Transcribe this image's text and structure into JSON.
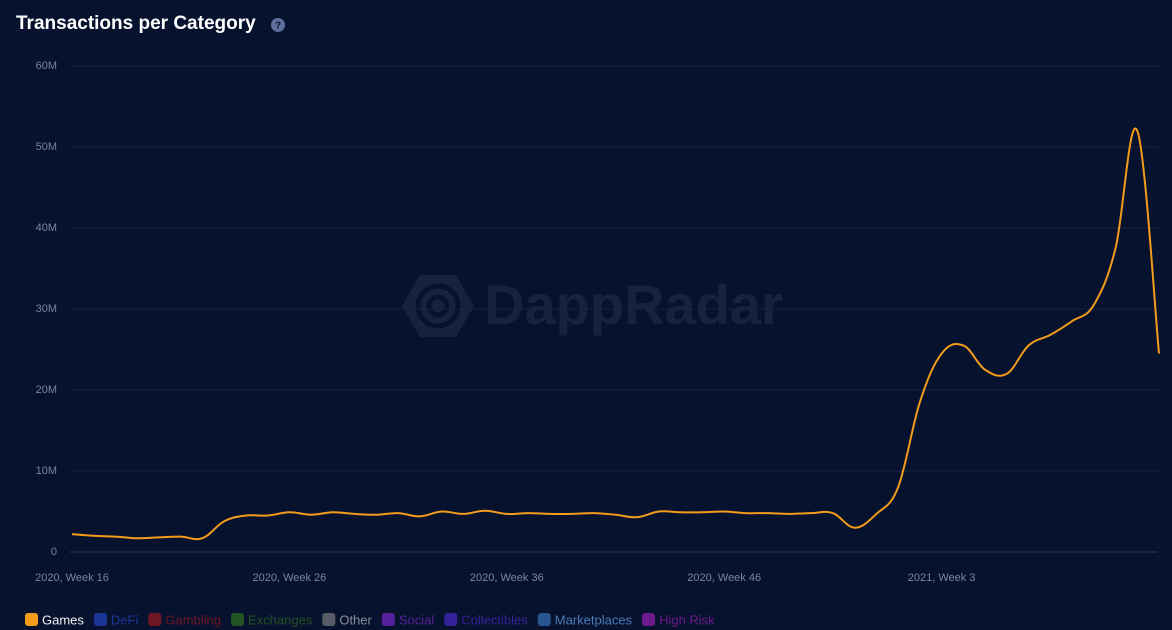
{
  "chart_data": {
    "type": "line",
    "title": "Transactions per Category",
    "watermark": "DappRadar",
    "categories": [
      "2020, Week 16",
      null,
      null,
      null,
      null,
      null,
      null,
      null,
      null,
      null,
      "2020, Week 26",
      null,
      null,
      null,
      null,
      null,
      null,
      null,
      null,
      null,
      "2020, Week 36",
      null,
      null,
      null,
      null,
      null,
      null,
      null,
      null,
      null,
      "2020, Week 46",
      null,
      null,
      null,
      null,
      null,
      null,
      null,
      null,
      null,
      "2021, Week 3",
      null,
      null,
      null,
      null,
      null,
      null,
      null,
      null,
      null,
      null
    ],
    "series": [
      {
        "name": "Games",
        "color": "#f39c1b",
        "visible": true,
        "values": [
          2200000,
          2000000,
          1900000,
          1700000,
          1800000,
          1900000,
          1700000,
          3800000,
          4500000,
          4500000,
          4900000,
          4600000,
          4900000,
          4700000,
          4600000,
          4800000,
          4400000,
          5000000,
          4700000,
          5100000,
          4700000,
          4800000,
          4700000,
          4700000,
          4800000,
          4600000,
          4300000,
          5000000,
          4900000,
          4900000,
          5000000,
          4800000,
          4800000,
          4700000,
          4800000,
          4800000,
          3000000,
          4700000,
          8000000,
          18500000,
          24500000,
          25500000,
          22500000,
          22000000,
          25500000,
          26800000,
          28500000,
          30500000,
          37500000,
          52000000,
          24500000
        ]
      },
      {
        "name": "DeFi",
        "color": "#1c3595",
        "visible": false
      },
      {
        "name": "Gambling",
        "color": "#6e1622",
        "visible": false
      },
      {
        "name": "Exchanges",
        "color": "#235223",
        "visible": false
      },
      {
        "name": "Other",
        "color": "#575c66",
        "visible": false
      },
      {
        "name": "Social",
        "color": "#55209a",
        "visible": false
      },
      {
        "name": "Collectibles",
        "color": "#35229a",
        "visible": false
      },
      {
        "name": "Marketplaces",
        "color": "#27558f",
        "visible": false
      },
      {
        "name": "High Risk",
        "color": "#6c1a8c",
        "visible": false
      }
    ],
    "ylim": [
      0,
      60000000
    ],
    "yticks": [
      0,
      {
        "value": 10000000,
        "label": "10M"
      },
      {
        "value": 20000000,
        "label": "20M"
      },
      {
        "value": 30000000,
        "label": "30M"
      },
      {
        "value": 40000000,
        "label": "40M"
      },
      {
        "value": 50000000,
        "label": "50M"
      },
      {
        "value": 60000000,
        "label": "60M"
      }
    ],
    "grid": true
  }
}
